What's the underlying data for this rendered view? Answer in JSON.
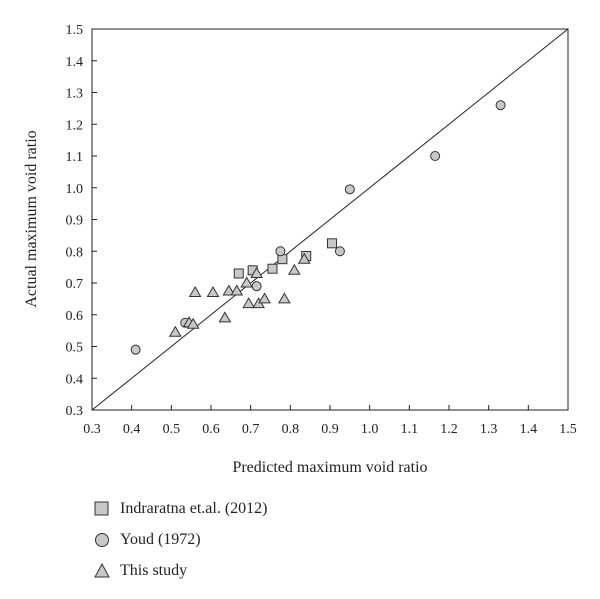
{
  "chart_data": {
    "type": "scatter",
    "title": "",
    "xlabel": "Predicted maximum void ratio",
    "ylabel": "Actual maximum void ratio",
    "xlim": [
      0.3,
      1.5
    ],
    "ylim": [
      0.3,
      1.5
    ],
    "ticks": [
      "0.3",
      "0.4",
      "0.5",
      "0.6",
      "0.7",
      "0.8",
      "0.9",
      "1.0",
      "1.1",
      "1.2",
      "1.3",
      "1.4",
      "1.5"
    ],
    "reference_line": {
      "name": "1:1 line",
      "x": [
        0.3,
        1.5
      ],
      "y": [
        0.3,
        1.5
      ]
    },
    "series": [
      {
        "name": "Indraratna et.al. (2012)",
        "marker": "square",
        "points": [
          [
            0.67,
            0.73
          ],
          [
            0.705,
            0.74
          ],
          [
            0.755,
            0.745
          ],
          [
            0.78,
            0.775
          ],
          [
            0.84,
            0.785
          ],
          [
            0.905,
            0.825
          ]
        ]
      },
      {
        "name": "Youd (1972)",
        "marker": "circle",
        "points": [
          [
            0.41,
            0.49
          ],
          [
            0.535,
            0.575
          ],
          [
            0.715,
            0.69
          ],
          [
            0.775,
            0.8
          ],
          [
            0.925,
            0.8
          ],
          [
            0.95,
            0.995
          ],
          [
            1.165,
            1.1
          ],
          [
            1.33,
            1.26
          ]
        ]
      },
      {
        "name": "This study",
        "marker": "triangle",
        "points": [
          [
            0.51,
            0.545
          ],
          [
            0.545,
            0.575
          ],
          [
            0.555,
            0.57
          ],
          [
            0.56,
            0.67
          ],
          [
            0.605,
            0.67
          ],
          [
            0.635,
            0.59
          ],
          [
            0.645,
            0.675
          ],
          [
            0.665,
            0.675
          ],
          [
            0.69,
            0.7
          ],
          [
            0.695,
            0.635
          ],
          [
            0.715,
            0.73
          ],
          [
            0.72,
            0.635
          ],
          [
            0.735,
            0.65
          ],
          [
            0.785,
            0.65
          ],
          [
            0.81,
            0.74
          ],
          [
            0.835,
            0.775
          ]
        ]
      }
    ]
  }
}
